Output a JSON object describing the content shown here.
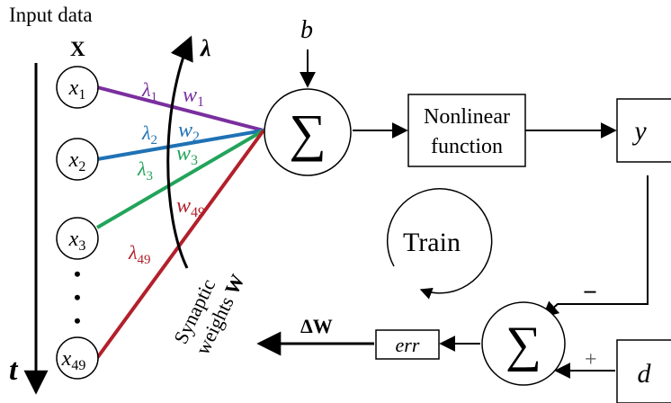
{
  "title": "Input data",
  "input_vector": {
    "symbol": "X"
  },
  "inputs": [
    {
      "base": "x",
      "sub": "1"
    },
    {
      "base": "x",
      "sub": "2"
    },
    {
      "base": "x",
      "sub": "3"
    },
    {
      "base": "x",
      "sub": "49"
    }
  ],
  "ellipsis": "•",
  "time_axis": {
    "symbol": "t"
  },
  "lambda_axis": {
    "symbol": "λ"
  },
  "weights": [
    {
      "lambda_base": "λ",
      "lambda_sub": "1",
      "w_base": "w",
      "w_sub": "1",
      "color": "#7a2f9e"
    },
    {
      "lambda_base": "λ",
      "lambda_sub": "2",
      "w_base": "w",
      "w_sub": "2",
      "color": "#1f72b5"
    },
    {
      "lambda_base": "λ",
      "lambda_sub": "3",
      "w_base": "w",
      "w_sub": "3",
      "color": "#22a45a"
    },
    {
      "lambda_base": "λ",
      "lambda_sub": "49",
      "w_base": "w",
      "w_sub": "49",
      "color": "#b3202a"
    }
  ],
  "synaptic": {
    "line1": "Synaptic",
    "line2_text": "weights ",
    "line2_symbol": "W"
  },
  "bias": {
    "symbol": "b"
  },
  "summation": {
    "symbol": "∑"
  },
  "nonlinear": {
    "line1": "Nonlinear",
    "line2": "function"
  },
  "output": {
    "symbol": "y"
  },
  "train": {
    "label": "Train"
  },
  "target": {
    "symbol": "d"
  },
  "minus_sign": "−",
  "plus_sign": "+",
  "error": {
    "symbol": "err"
  },
  "delta_w": {
    "label": "ΔW"
  }
}
